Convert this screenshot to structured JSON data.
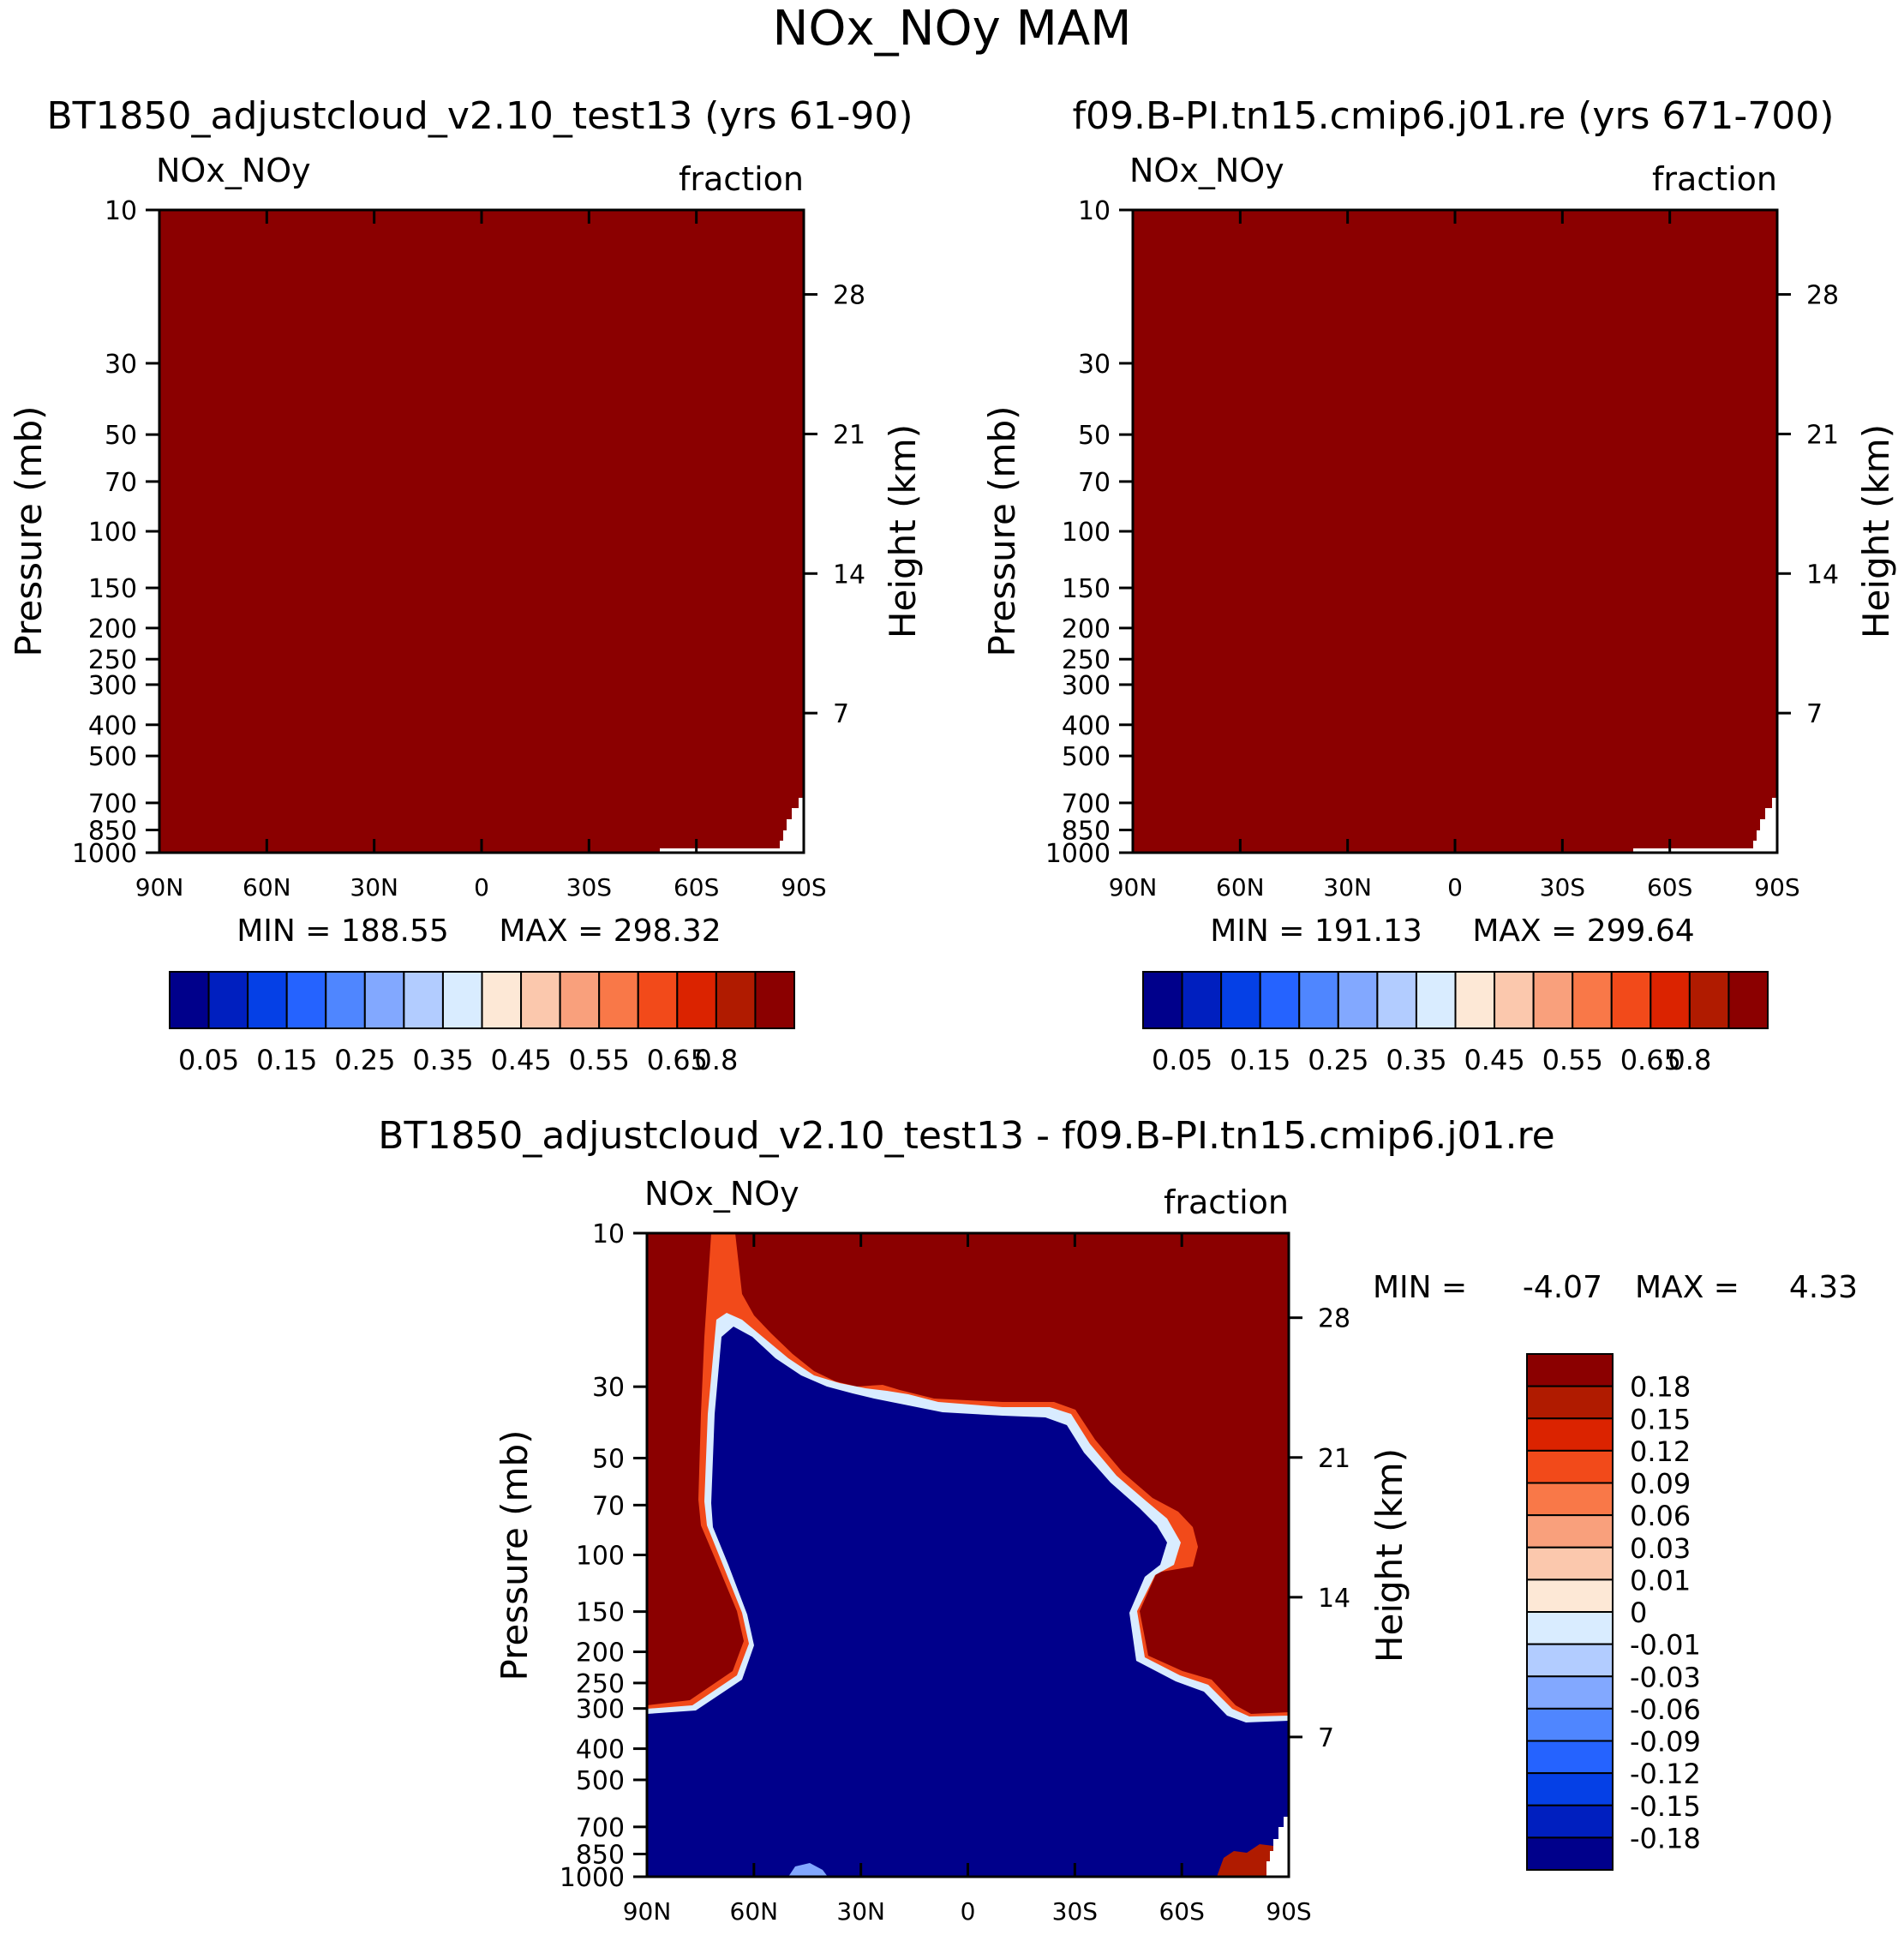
{
  "page_title": "NOx_NOy MAM",
  "colors": {
    "background": "#ffffff",
    "panel_fill_top": "#8b0000",
    "diff_positive": "#8b0000",
    "diff_negative": "#00008b"
  },
  "chart_data": [
    {
      "id": "panel-left",
      "type": "heatmap",
      "title": "BT1850_adjustcloud_v2.10_test13 (yrs 61-90)",
      "variable_label": "NOx_NOy",
      "units_label": "fraction",
      "xlabel": "",
      "ylabel_left": "Pressure (mb)",
      "ylabel_right": "Height (km)",
      "x_ticks": [
        "90N",
        "60N",
        "30N",
        "0",
        "30S",
        "60S",
        "90S"
      ],
      "y_ticks_pressure": [
        "10",
        "30",
        "50",
        "70",
        "100",
        "150",
        "200",
        "250",
        "300",
        "400",
        "500",
        "700",
        "850",
        "1000"
      ],
      "y_ticks_height": [
        "28",
        "21",
        "14",
        "7"
      ],
      "min_label": "MIN = 188.55",
      "max_label": "MAX = 298.32",
      "colorbar_labels": [
        "0.05",
        "0.15",
        "0.25",
        "0.35",
        "0.45",
        "0.55",
        "0.65",
        "0.8"
      ],
      "colorbar_colors": [
        "#00008b",
        "#001fbf",
        "#0540e6",
        "#2563ff",
        "#4f86ff",
        "#82a8ff",
        "#b2ccff",
        "#d9ecff",
        "#fde8d6",
        "#fbc8ad",
        "#f9a07c",
        "#f97848",
        "#f24a1a",
        "#db2300",
        "#b01b00",
        "#8b0000"
      ]
    },
    {
      "id": "panel-right",
      "type": "heatmap",
      "title": "f09.B-PI.tn15.cmip6.j01.re (yrs 671-700)",
      "variable_label": "NOx_NOy",
      "units_label": "fraction",
      "xlabel": "",
      "ylabel_left": "Pressure (mb)",
      "ylabel_right": "Height (km)",
      "x_ticks": [
        "90N",
        "60N",
        "30N",
        "0",
        "30S",
        "60S",
        "90S"
      ],
      "y_ticks_pressure": [
        "10",
        "30",
        "50",
        "70",
        "100",
        "150",
        "200",
        "250",
        "300",
        "400",
        "500",
        "700",
        "850",
        "1000"
      ],
      "y_ticks_height": [
        "28",
        "21",
        "14",
        "7"
      ],
      "min_label": "MIN = 191.13",
      "max_label": "MAX = 299.64",
      "colorbar_labels": [
        "0.05",
        "0.15",
        "0.25",
        "0.35",
        "0.45",
        "0.55",
        "0.65",
        "0.8"
      ],
      "colorbar_colors": [
        "#00008b",
        "#001fbf",
        "#0540e6",
        "#2563ff",
        "#4f86ff",
        "#82a8ff",
        "#b2ccff",
        "#d9ecff",
        "#fde8d6",
        "#fbc8ad",
        "#f9a07c",
        "#f97848",
        "#f24a1a",
        "#db2300",
        "#b01b00",
        "#8b0000"
      ]
    },
    {
      "id": "panel-diff",
      "type": "heatmap",
      "title": "BT1850_adjustcloud_v2.10_test13 - f09.B-PI.tn15.cmip6.j01.re",
      "variable_label": "NOx_NOy",
      "units_label": "fraction",
      "xlabel": "",
      "ylabel_left": "Pressure (mb)",
      "ylabel_right": "Height (km)",
      "x_ticks": [
        "90N",
        "60N",
        "30N",
        "0",
        "30S",
        "60S",
        "90S"
      ],
      "y_ticks_pressure": [
        "10",
        "30",
        "50",
        "70",
        "100",
        "150",
        "200",
        "250",
        "300",
        "400",
        "500",
        "700",
        "850",
        "1000"
      ],
      "y_ticks_height": [
        "28",
        "21",
        "14",
        "7"
      ],
      "min_label": "MIN =",
      "min_value": "-4.07",
      "max_label": "MAX =",
      "max_value": "4.33",
      "colorbar_labels": [
        "0.18",
        "0.15",
        "0.12",
        "0.09",
        "0.06",
        "0.03",
        "0.01",
        "0",
        "-0.01",
        "-0.03",
        "-0.06",
        "-0.09",
        "-0.12",
        "-0.15",
        "-0.18"
      ],
      "colorbar_colors": [
        "#8b0000",
        "#b01b00",
        "#db2300",
        "#f24a1a",
        "#f97848",
        "#f9a07c",
        "#fbc8ad",
        "#fde8d6",
        "#d9ecff",
        "#b2ccff",
        "#82a8ff",
        "#4f86ff",
        "#2563ff",
        "#0540e6",
        "#001fbf",
        "#00008b"
      ]
    }
  ]
}
